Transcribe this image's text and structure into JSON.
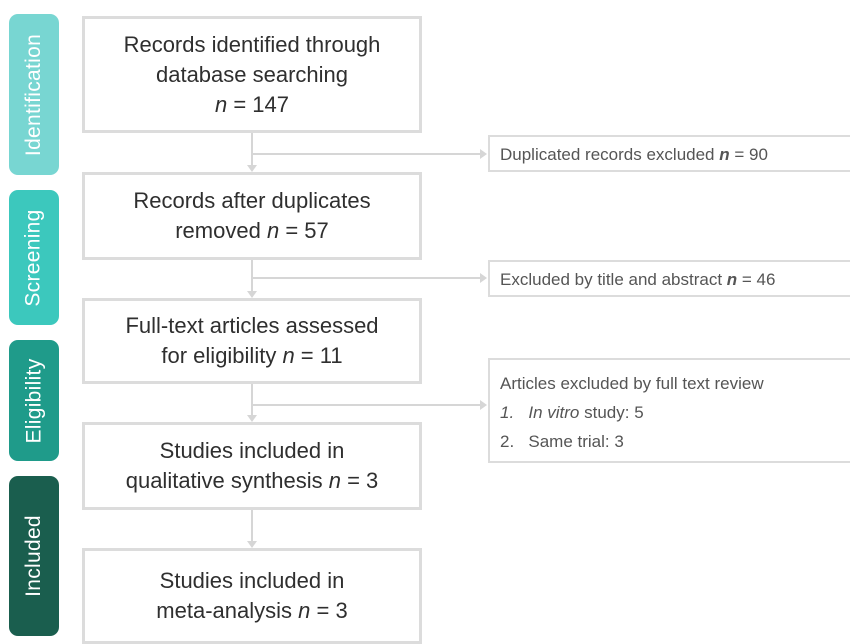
{
  "phases": {
    "identification": "Identification",
    "screening": "Screening",
    "eligibility": "Eligibility",
    "included": "Included"
  },
  "boxes": {
    "identified": {
      "line1": "Records identified through",
      "line2": "database searching",
      "n_label": "n",
      "n_value": " = 147"
    },
    "after_duplicates": {
      "line1": "Records after duplicates",
      "line2": "removed ",
      "n_label": "n",
      "n_value": " = 57"
    },
    "full_text": {
      "line1": "Full-text articles assessed",
      "line2": "for eligibility ",
      "n_label": "n",
      "n_value": " = 11"
    },
    "qualitative": {
      "line1": "Studies included in",
      "line2": "qualitative synthesis ",
      "n_label": "n",
      "n_value": " = 3"
    },
    "meta_analysis": {
      "line1": "Studies included in",
      "line2": "meta-analysis ",
      "n_label": "n",
      "n_value": " = 3"
    }
  },
  "exclusions": {
    "duplicates": {
      "text": "Duplicated records excluded ",
      "n_label": "n",
      "n_value": " = 90"
    },
    "title_abstract": {
      "text": "Excluded by title and abstract ",
      "n_label": "n",
      "n_value": " = 46"
    },
    "full_text": {
      "title": "Articles excluded by full text review",
      "items": [
        {
          "num": "1.",
          "italic": "In vitro",
          "text": " study: 5"
        },
        {
          "num": "2.",
          "italic": "",
          "text": "Same trial: 3"
        }
      ]
    }
  }
}
